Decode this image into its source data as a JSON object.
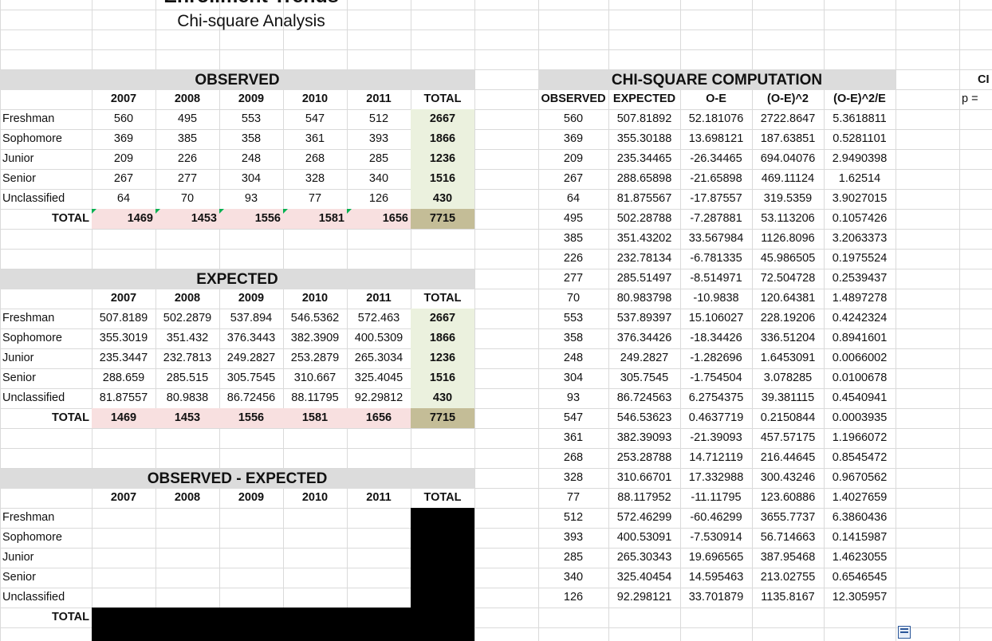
{
  "title": "Enrollment Trends",
  "subtitle": "Chi-square Analysis",
  "observed": {
    "header": "OBSERVED",
    "columns": [
      "2007",
      "2008",
      "2009",
      "2010",
      "2011",
      "TOTAL"
    ],
    "rows": [
      {
        "label": "Freshman",
        "values": [
          "560",
          "495",
          "553",
          "547",
          "512"
        ],
        "total": "2667"
      },
      {
        "label": "Sophomore",
        "values": [
          "369",
          "385",
          "358",
          "361",
          "393"
        ],
        "total": "1866"
      },
      {
        "label": "Junior",
        "values": [
          "209",
          "226",
          "248",
          "268",
          "285"
        ],
        "total": "1236"
      },
      {
        "label": "Senior",
        "values": [
          "267",
          "277",
          "304",
          "328",
          "340"
        ],
        "total": "1516"
      },
      {
        "label": "Unclassified",
        "values": [
          "64",
          "70",
          "93",
          "77",
          "126"
        ],
        "total": "430"
      }
    ],
    "total_label": "TOTAL",
    "totals": [
      "1469",
      "1453",
      "1556",
      "1581",
      "1656"
    ],
    "grand_total": "7715"
  },
  "expected": {
    "header": "EXPECTED",
    "columns": [
      "2007",
      "2008",
      "2009",
      "2010",
      "2011",
      "TOTAL"
    ],
    "rows": [
      {
        "label": "Freshman",
        "values": [
          "507.8189",
          "502.2879",
          "537.894",
          "546.5362",
          "572.463"
        ],
        "total": "2667"
      },
      {
        "label": "Sophomore",
        "values": [
          "355.3019",
          "351.432",
          "376.3443",
          "382.3909",
          "400.5309"
        ],
        "total": "1866"
      },
      {
        "label": "Junior",
        "values": [
          "235.3447",
          "232.7813",
          "249.2827",
          "253.2879",
          "265.3034"
        ],
        "total": "1236"
      },
      {
        "label": "Senior",
        "values": [
          "288.659",
          "285.515",
          "305.7545",
          "310.667",
          "325.4045"
        ],
        "total": "1516"
      },
      {
        "label": "Unclassified",
        "values": [
          "81.87557",
          "80.9838",
          "86.72456",
          "88.11795",
          "92.29812"
        ],
        "total": "430"
      }
    ],
    "total_label": "TOTAL",
    "totals": [
      "1469",
      "1453",
      "1556",
      "1581",
      "1656"
    ],
    "grand_total": "7715"
  },
  "obs_minus_exp": {
    "header": "OBSERVED - EXPECTED",
    "columns": [
      "2007",
      "2008",
      "2009",
      "2010",
      "2011",
      "TOTAL"
    ],
    "row_labels": [
      "Freshman",
      "Sophomore",
      "Junior",
      "Senior",
      "Unclassified"
    ],
    "total_label": "TOTAL"
  },
  "chi": {
    "header": "CHI-SQUARE COMPUTATION",
    "columns": [
      "OBSERVED",
      "EXPECTED",
      "O-E",
      "(O-E)^2",
      "(O-E)^2/E"
    ],
    "rows": [
      [
        "560",
        "507.81892",
        "52.181076",
        "2722.8647",
        "5.3618811"
      ],
      [
        "369",
        "355.30188",
        "13.698121",
        "187.63851",
        "0.5281101"
      ],
      [
        "209",
        "235.34465",
        "-26.34465",
        "694.04076",
        "2.9490398"
      ],
      [
        "267",
        "288.65898",
        "-21.65898",
        "469.11124",
        "1.62514"
      ],
      [
        "64",
        "81.875567",
        "-17.87557",
        "319.5359",
        "3.9027015"
      ],
      [
        "495",
        "502.28788",
        "-7.287881",
        "53.113206",
        "0.1057426"
      ],
      [
        "385",
        "351.43202",
        "33.567984",
        "1126.8096",
        "3.2063373"
      ],
      [
        "226",
        "232.78134",
        "-6.781335",
        "45.986505",
        "0.1975524"
      ],
      [
        "277",
        "285.51497",
        "-8.514971",
        "72.504728",
        "0.2539437"
      ],
      [
        "70",
        "80.983798",
        "-10.9838",
        "120.64381",
        "1.4897278"
      ],
      [
        "553",
        "537.89397",
        "15.106027",
        "228.19206",
        "0.4242324"
      ],
      [
        "358",
        "376.34426",
        "-18.34426",
        "336.51204",
        "0.8941601"
      ],
      [
        "248",
        "249.2827",
        "-1.282696",
        "1.6453091",
        "0.0066002"
      ],
      [
        "304",
        "305.7545",
        "-1.754504",
        "3.078285",
        "0.0100678"
      ],
      [
        "93",
        "86.724563",
        "6.2754375",
        "39.381115",
        "0.4540941"
      ],
      [
        "547",
        "546.53623",
        "0.4637719",
        "0.2150844",
        "0.0003935"
      ],
      [
        "361",
        "382.39093",
        "-21.39093",
        "457.57175",
        "1.1966072"
      ],
      [
        "268",
        "253.28788",
        "14.712119",
        "216.44645",
        "0.8545472"
      ],
      [
        "328",
        "310.66701",
        "17.332988",
        "300.43246",
        "0.9670562"
      ],
      [
        "77",
        "88.117952",
        "-11.11795",
        "123.60886",
        "1.4027659"
      ],
      [
        "512",
        "572.46299",
        "-60.46299",
        "3655.7737",
        "6.3860436"
      ],
      [
        "393",
        "400.53091",
        "-7.530914",
        "56.714663",
        "0.1415987"
      ],
      [
        "285",
        "265.30343",
        "19.696565",
        "387.95468",
        "1.4623055"
      ],
      [
        "340",
        "325.40454",
        "14.595463",
        "213.02755",
        "0.6546545"
      ],
      [
        "126",
        "92.298121",
        "33.701879",
        "1135.8167",
        "12.305957"
      ]
    ]
  },
  "side": {
    "ch_label": "CI",
    "p_label": "p ="
  }
}
